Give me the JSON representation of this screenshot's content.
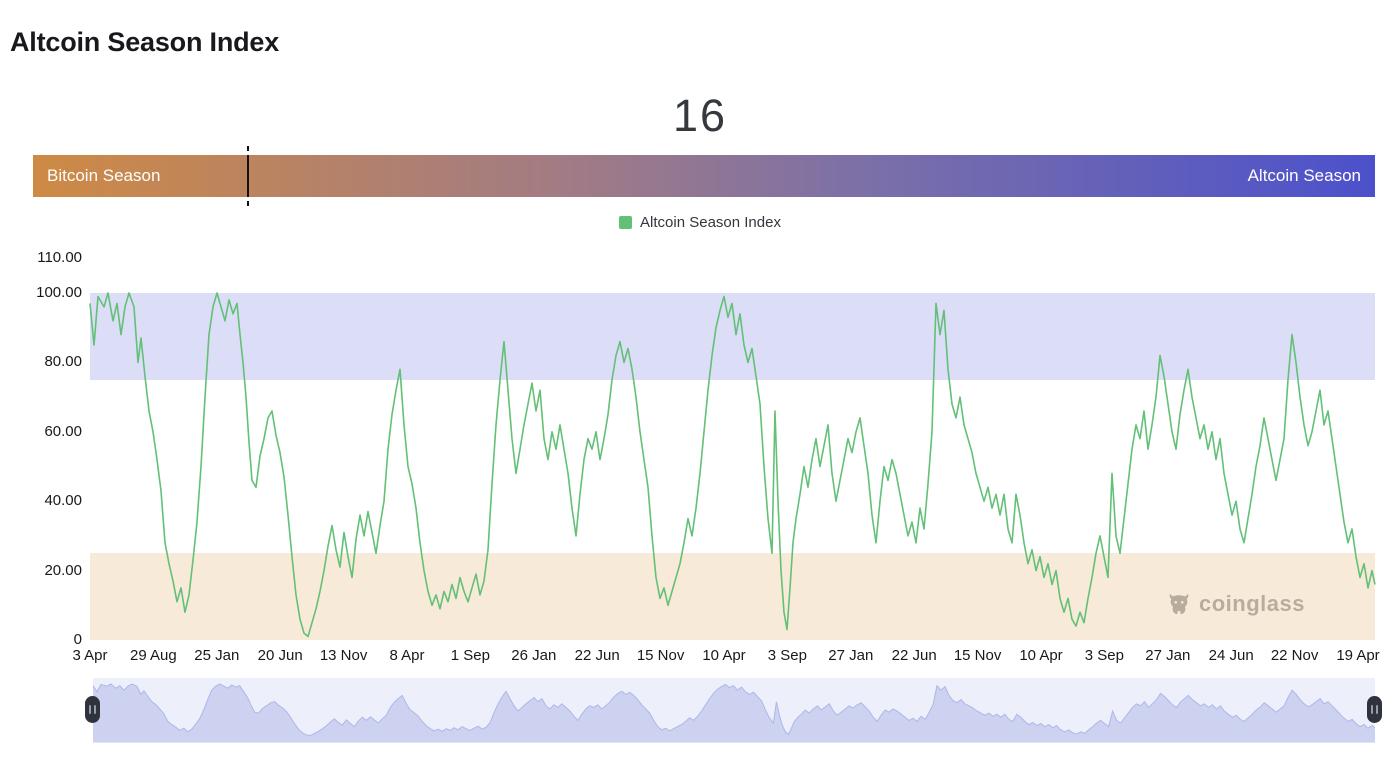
{
  "page": {
    "title": "Altcoin Season Index"
  },
  "index": {
    "value": "16"
  },
  "season_bar": {
    "left_label": "Bitcoin Season",
    "right_label": "Altcoin Season",
    "marker_percent": 16,
    "left_color": "#ce8a45",
    "mid_color_1": "#a17b85",
    "mid_color_2": "#7a6fa9",
    "right_color": "#4c51cb",
    "marker_color": "#111111"
  },
  "legend": {
    "label": "Altcoin Season Index",
    "marker_color": "#63c077"
  },
  "watermark": {
    "text": "coinglass",
    "icon": "coinglass-bull-icon",
    "color": "#8d8679"
  },
  "chart_data": {
    "type": "line",
    "title": "Altcoin Season Index",
    "series_name": "Altcoin Season Index",
    "line_color": "#63c077",
    "xlabel": "",
    "ylabel": "",
    "ylim": [
      0,
      110
    ],
    "grid": false,
    "legend_position": "top-center",
    "ytick_labels": [
      "110.00",
      "100.00",
      "80.00",
      "60.00",
      "40.00",
      "20.00",
      "0"
    ],
    "ytick_values": [
      110,
      100,
      80,
      60,
      40,
      20,
      0
    ],
    "xtick_labels": [
      "3 Apr",
      "29 Aug",
      "25 Jan",
      "20 Jun",
      "13 Nov",
      "8 Apr",
      "1 Sep",
      "26 Jan",
      "22 Jun",
      "15 Nov",
      "10 Apr",
      "3 Sep",
      "27 Jan",
      "22 Jun",
      "15 Nov",
      "10 Apr",
      "3 Sep",
      "27 Jan",
      "24 Jun",
      "22 Nov",
      "19 Apr"
    ],
    "bands": [
      {
        "from": 75,
        "to": 100,
        "color": "#dcddf6",
        "meaning": "Altcoin Season zone"
      },
      {
        "from": 0,
        "to": 25,
        "color": "#f8ead9",
        "meaning": "Bitcoin Season zone"
      }
    ],
    "current_value": 16,
    "points": [
      [
        0,
        97
      ],
      [
        4,
        85
      ],
      [
        8,
        99
      ],
      [
        14,
        96
      ],
      [
        18,
        100
      ],
      [
        23,
        92
      ],
      [
        27,
        97
      ],
      [
        31,
        88
      ],
      [
        35,
        96
      ],
      [
        39,
        100
      ],
      [
        44,
        96
      ],
      [
        48,
        80
      ],
      [
        51,
        87
      ],
      [
        55,
        76
      ],
      [
        59,
        66
      ],
      [
        63,
        60
      ],
      [
        67,
        52
      ],
      [
        71,
        43
      ],
      [
        75,
        28
      ],
      [
        79,
        22
      ],
      [
        83,
        17
      ],
      [
        87,
        11
      ],
      [
        91,
        15
      ],
      [
        95,
        8
      ],
      [
        99,
        13
      ],
      [
        103,
        23
      ],
      [
        107,
        34
      ],
      [
        111,
        50
      ],
      [
        115,
        70
      ],
      [
        119,
        88
      ],
      [
        123,
        96
      ],
      [
        127,
        100
      ],
      [
        131,
        96
      ],
      [
        135,
        92
      ],
      [
        139,
        98
      ],
      [
        143,
        94
      ],
      [
        147,
        97
      ],
      [
        150,
        88
      ],
      [
        153,
        80
      ],
      [
        156,
        70
      ],
      [
        159,
        57
      ],
      [
        162,
        46
      ],
      [
        166,
        44
      ],
      [
        170,
        53
      ],
      [
        174,
        58
      ],
      [
        178,
        64
      ],
      [
        182,
        66
      ],
      [
        186,
        59
      ],
      [
        190,
        54
      ],
      [
        194,
        47
      ],
      [
        198,
        36
      ],
      [
        202,
        24
      ],
      [
        206,
        13
      ],
      [
        210,
        6
      ],
      [
        214,
        2
      ],
      [
        218,
        1
      ],
      [
        222,
        5
      ],
      [
        226,
        9
      ],
      [
        230,
        14
      ],
      [
        234,
        20
      ],
      [
        238,
        27
      ],
      [
        242,
        33
      ],
      [
        246,
        26
      ],
      [
        250,
        21
      ],
      [
        254,
        31
      ],
      [
        258,
        24
      ],
      [
        262,
        18
      ],
      [
        266,
        29
      ],
      [
        270,
        36
      ],
      [
        274,
        30
      ],
      [
        278,
        37
      ],
      [
        282,
        31
      ],
      [
        286,
        25
      ],
      [
        290,
        33
      ],
      [
        294,
        40
      ],
      [
        298,
        55
      ],
      [
        302,
        65
      ],
      [
        306,
        72
      ],
      [
        310,
        78
      ],
      [
        314,
        62
      ],
      [
        318,
        50
      ],
      [
        322,
        45
      ],
      [
        326,
        38
      ],
      [
        330,
        28
      ],
      [
        334,
        20
      ],
      [
        338,
        14
      ],
      [
        342,
        10
      ],
      [
        346,
        13
      ],
      [
        350,
        9
      ],
      [
        354,
        14
      ],
      [
        358,
        11
      ],
      [
        362,
        16
      ],
      [
        366,
        12
      ],
      [
        370,
        18
      ],
      [
        374,
        14
      ],
      [
        378,
        11
      ],
      [
        382,
        15
      ],
      [
        386,
        19
      ],
      [
        390,
        13
      ],
      [
        394,
        17
      ],
      [
        398,
        26
      ],
      [
        402,
        45
      ],
      [
        406,
        62
      ],
      [
        410,
        75
      ],
      [
        414,
        86
      ],
      [
        418,
        72
      ],
      [
        422,
        58
      ],
      [
        426,
        48
      ],
      [
        430,
        55
      ],
      [
        434,
        62
      ],
      [
        438,
        68
      ],
      [
        442,
        74
      ],
      [
        446,
        66
      ],
      [
        450,
        72
      ],
      [
        454,
        58
      ],
      [
        458,
        52
      ],
      [
        462,
        60
      ],
      [
        466,
        55
      ],
      [
        470,
        62
      ],
      [
        474,
        55
      ],
      [
        478,
        48
      ],
      [
        482,
        38
      ],
      [
        486,
        30
      ],
      [
        490,
        42
      ],
      [
        494,
        52
      ],
      [
        498,
        58
      ],
      [
        502,
        55
      ],
      [
        506,
        60
      ],
      [
        510,
        52
      ],
      [
        514,
        58
      ],
      [
        518,
        65
      ],
      [
        522,
        75
      ],
      [
        526,
        82
      ],
      [
        530,
        86
      ],
      [
        534,
        80
      ],
      [
        538,
        84
      ],
      [
        542,
        78
      ],
      [
        546,
        70
      ],
      [
        550,
        60
      ],
      [
        554,
        52
      ],
      [
        558,
        44
      ],
      [
        562,
        30
      ],
      [
        566,
        18
      ],
      [
        570,
        12
      ],
      [
        574,
        15
      ],
      [
        578,
        10
      ],
      [
        582,
        14
      ],
      [
        586,
        18
      ],
      [
        590,
        22
      ],
      [
        594,
        28
      ],
      [
        598,
        35
      ],
      [
        602,
        30
      ],
      [
        606,
        38
      ],
      [
        610,
        48
      ],
      [
        614,
        60
      ],
      [
        618,
        72
      ],
      [
        622,
        82
      ],
      [
        626,
        90
      ],
      [
        630,
        95
      ],
      [
        634,
        99
      ],
      [
        638,
        93
      ],
      [
        642,
        97
      ],
      [
        646,
        88
      ],
      [
        650,
        94
      ],
      [
        654,
        85
      ],
      [
        658,
        80
      ],
      [
        662,
        84
      ],
      [
        666,
        76
      ],
      [
        670,
        68
      ],
      [
        674,
        50
      ],
      [
        678,
        35
      ],
      [
        682,
        25
      ],
      [
        685,
        66
      ],
      [
        688,
        40
      ],
      [
        691,
        20
      ],
      [
        694,
        8
      ],
      [
        697,
        3
      ],
      [
        700,
        15
      ],
      [
        703,
        28
      ],
      [
        706,
        35
      ],
      [
        710,
        42
      ],
      [
        714,
        50
      ],
      [
        718,
        44
      ],
      [
        722,
        52
      ],
      [
        726,
        58
      ],
      [
        730,
        50
      ],
      [
        734,
        56
      ],
      [
        738,
        62
      ],
      [
        742,
        48
      ],
      [
        746,
        40
      ],
      [
        750,
        46
      ],
      [
        754,
        52
      ],
      [
        758,
        58
      ],
      [
        762,
        54
      ],
      [
        766,
        60
      ],
      [
        770,
        64
      ],
      [
        774,
        56
      ],
      [
        778,
        48
      ],
      [
        782,
        36
      ],
      [
        786,
        28
      ],
      [
        790,
        40
      ],
      [
        794,
        50
      ],
      [
        798,
        46
      ],
      [
        802,
        52
      ],
      [
        806,
        48
      ],
      [
        810,
        42
      ],
      [
        814,
        36
      ],
      [
        818,
        30
      ],
      [
        822,
        34
      ],
      [
        826,
        28
      ],
      [
        830,
        38
      ],
      [
        834,
        32
      ],
      [
        838,
        45
      ],
      [
        842,
        60
      ],
      [
        846,
        97
      ],
      [
        850,
        88
      ],
      [
        854,
        95
      ],
      [
        858,
        78
      ],
      [
        862,
        68
      ],
      [
        866,
        64
      ],
      [
        870,
        70
      ],
      [
        874,
        62
      ],
      [
        878,
        58
      ],
      [
        882,
        54
      ],
      [
        886,
        48
      ],
      [
        890,
        44
      ],
      [
        894,
        40
      ],
      [
        898,
        44
      ],
      [
        902,
        38
      ],
      [
        906,
        42
      ],
      [
        910,
        36
      ],
      [
        914,
        42
      ],
      [
        918,
        32
      ],
      [
        922,
        28
      ],
      [
        926,
        42
      ],
      [
        930,
        36
      ],
      [
        934,
        28
      ],
      [
        938,
        22
      ],
      [
        942,
        26
      ],
      [
        946,
        20
      ],
      [
        950,
        24
      ],
      [
        954,
        18
      ],
      [
        958,
        22
      ],
      [
        962,
        16
      ],
      [
        966,
        20
      ],
      [
        970,
        12
      ],
      [
        974,
        8
      ],
      [
        978,
        12
      ],
      [
        982,
        6
      ],
      [
        986,
        4
      ],
      [
        990,
        8
      ],
      [
        994,
        5
      ],
      [
        998,
        12
      ],
      [
        1002,
        18
      ],
      [
        1006,
        25
      ],
      [
        1010,
        30
      ],
      [
        1014,
        24
      ],
      [
        1018,
        18
      ],
      [
        1022,
        48
      ],
      [
        1026,
        30
      ],
      [
        1030,
        25
      ],
      [
        1034,
        35
      ],
      [
        1038,
        45
      ],
      [
        1042,
        55
      ],
      [
        1046,
        62
      ],
      [
        1050,
        58
      ],
      [
        1054,
        66
      ],
      [
        1058,
        55
      ],
      [
        1062,
        62
      ],
      [
        1066,
        70
      ],
      [
        1070,
        82
      ],
      [
        1074,
        76
      ],
      [
        1078,
        68
      ],
      [
        1082,
        60
      ],
      [
        1086,
        55
      ],
      [
        1090,
        65
      ],
      [
        1094,
        72
      ],
      [
        1098,
        78
      ],
      [
        1102,
        70
      ],
      [
        1106,
        64
      ],
      [
        1110,
        58
      ],
      [
        1114,
        62
      ],
      [
        1118,
        55
      ],
      [
        1122,
        60
      ],
      [
        1126,
        52
      ],
      [
        1130,
        58
      ],
      [
        1134,
        48
      ],
      [
        1138,
        42
      ],
      [
        1142,
        36
      ],
      [
        1146,
        40
      ],
      [
        1150,
        32
      ],
      [
        1154,
        28
      ],
      [
        1158,
        35
      ],
      [
        1162,
        42
      ],
      [
        1166,
        50
      ],
      [
        1170,
        56
      ],
      [
        1174,
        64
      ],
      [
        1178,
        58
      ],
      [
        1182,
        52
      ],
      [
        1186,
        46
      ],
      [
        1190,
        52
      ],
      [
        1194,
        58
      ],
      [
        1198,
        75
      ],
      [
        1202,
        88
      ],
      [
        1206,
        80
      ],
      [
        1210,
        70
      ],
      [
        1214,
        62
      ],
      [
        1218,
        56
      ],
      [
        1222,
        60
      ],
      [
        1226,
        66
      ],
      [
        1230,
        72
      ],
      [
        1234,
        62
      ],
      [
        1238,
        66
      ],
      [
        1242,
        58
      ],
      [
        1246,
        50
      ],
      [
        1250,
        42
      ],
      [
        1254,
        34
      ],
      [
        1258,
        28
      ],
      [
        1262,
        32
      ],
      [
        1266,
        24
      ],
      [
        1270,
        18
      ],
      [
        1274,
        22
      ],
      [
        1278,
        15
      ],
      [
        1282,
        20
      ],
      [
        1285,
        16
      ]
    ]
  },
  "navigator": {
    "background": "#edf0fb",
    "area_fill": "#ccd2f0",
    "area_stroke": "#aeb7e8",
    "left_handle": "drag-handle",
    "right_handle": "drag-handle"
  }
}
